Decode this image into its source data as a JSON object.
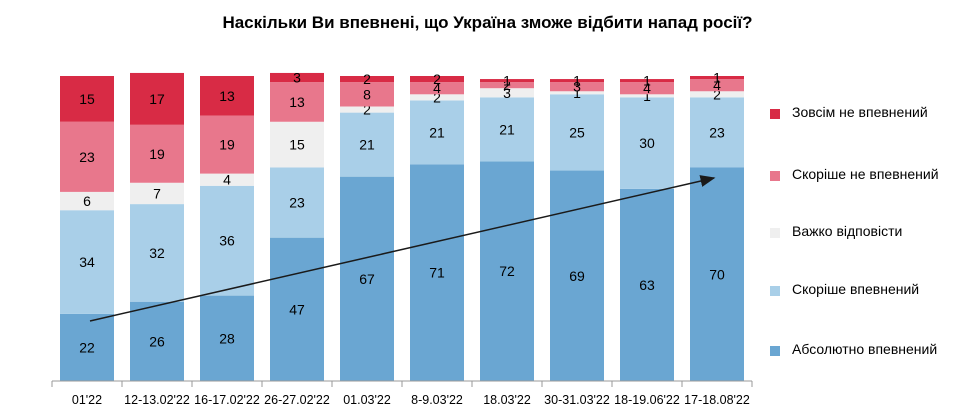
{
  "chart_data": {
    "type": "bar",
    "stacked": true,
    "title": "Наскільки Ви впевнені, що Україна зможе відбити напад росії?",
    "categories": [
      "01'22",
      "12-13.02'22",
      "16-17.02'22",
      "26-27.02'22",
      "01.03'22",
      "8-9.03'22",
      "18.03'22",
      "30-31.03'22",
      "18-19.06'22",
      "17-18.08'22"
    ],
    "ylim": [
      0,
      100
    ],
    "grid": false,
    "legend_position": "right",
    "series": [
      {
        "name": "Абсолютно впевнений",
        "color": "#6aa6d2",
        "values": [
          22,
          26,
          28,
          47,
          67,
          71,
          72,
          69,
          63,
          70
        ]
      },
      {
        "name": "Скоріше впевнений",
        "color": "#a9cfe8",
        "values": [
          34,
          32,
          36,
          23,
          21,
          21,
          21,
          25,
          30,
          23
        ]
      },
      {
        "name": "Важко відповісти",
        "color": "#efefef",
        "values": [
          6,
          7,
          4,
          15,
          2,
          2,
          3,
          1,
          1,
          2
        ]
      },
      {
        "name": "Скоріше не впевнений",
        "color": "#e8778c",
        "values": [
          23,
          19,
          19,
          13,
          8,
          4,
          2,
          3,
          4,
          4
        ]
      },
      {
        "name": "Зовсім не впевнений",
        "color": "#d82b45",
        "values": [
          15,
          17,
          13,
          3,
          2,
          2,
          1,
          1,
          1,
          1
        ]
      }
    ],
    "annotation": "trend-arrow"
  }
}
